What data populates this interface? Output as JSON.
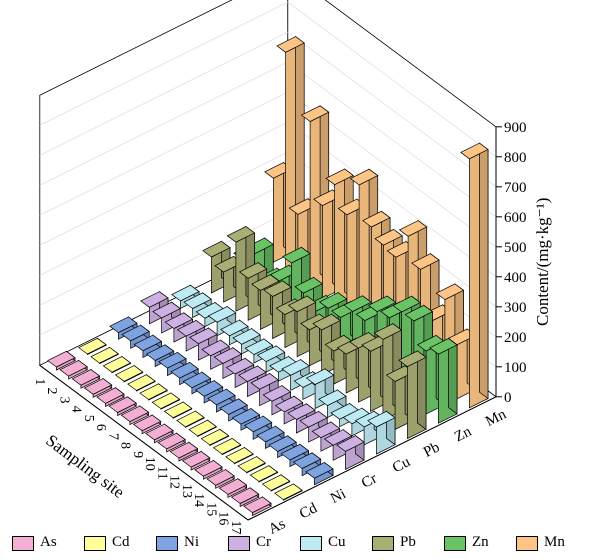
{
  "chart_data": {
    "type": "bar3d",
    "title": "",
    "zlabel": "Content/(mg·kg⁻¹)",
    "ylabel": "Sampling site",
    "zlim": [
      0,
      900
    ],
    "ztick_labels": [
      "0",
      "100",
      "200",
      "300",
      "400",
      "500",
      "600",
      "700",
      "800",
      "900"
    ],
    "site_labels": [
      "1",
      "2",
      "3",
      "4",
      "5",
      "6",
      "7",
      "8",
      "9",
      "10",
      "11",
      "12",
      "13",
      "14",
      "15",
      "16",
      "17"
    ],
    "series": [
      {
        "name": "As",
        "color": "#f3aed3",
        "values": [
          10,
          10,
          10,
          10,
          10,
          10,
          10,
          10,
          10,
          10,
          10,
          10,
          10,
          10,
          10,
          10,
          10
        ]
      },
      {
        "name": "Cd",
        "color": "#ffff99",
        "values": [
          2,
          2,
          2,
          2,
          2,
          2,
          2,
          2,
          2,
          2,
          2,
          2,
          2,
          2,
          2,
          2,
          2
        ]
      },
      {
        "name": "Ni",
        "color": "#7ea3e0",
        "values": [
          22,
          25,
          22,
          20,
          25,
          22,
          20,
          22,
          24,
          22,
          20,
          25,
          22,
          20,
          22,
          24,
          22
        ]
      },
      {
        "name": "Cr",
        "color": "#cdb1e2",
        "values": [
          55,
          50,
          45,
          50,
          55,
          45,
          50,
          45,
          50,
          55,
          45,
          40,
          45,
          50,
          45,
          50,
          60
        ]
      },
      {
        "name": "Cu",
        "color": "#bdeaf3",
        "values": [
          25,
          30,
          28,
          45,
          30,
          32,
          28,
          35,
          30,
          50,
          40,
          80,
          40,
          25,
          40,
          60,
          90
        ]
      },
      {
        "name": "Pb",
        "color": "#a9ae75",
        "values": [
          120,
          100,
          230,
          140,
          130,
          140,
          110,
          150,
          120,
          150,
          110,
          130,
          180,
          200,
          270,
          160,
          240
        ]
      },
      {
        "name": "Zn",
        "color": "#6ac466",
        "values": [
          60,
          110,
          40,
          80,
          170,
          100,
          70,
          110,
          110,
          160,
          160,
          220,
          230,
          280,
          280,
          210,
          230
        ]
      },
      {
        "name": "Mn",
        "color": "#fcc586",
        "values": [
          280,
          730,
          220,
          560,
          310,
          410,
          340,
          470,
          360,
          330,
          320,
          420,
          340,
          200,
          300,
          180,
          830
        ]
      }
    ],
    "legend": {
      "position": "bottom",
      "items": [
        "As",
        "Cd",
        "Ni",
        "Cr",
        "Cu",
        "Pb",
        "Zn",
        "Mn"
      ]
    }
  }
}
